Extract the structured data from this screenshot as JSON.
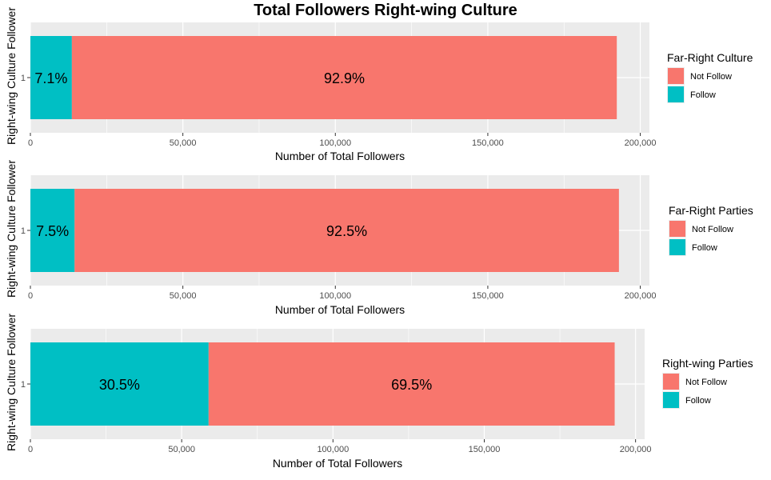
{
  "title": "Total Followers Right-wing Culture",
  "colors": {
    "follow": "#00BFC4",
    "not_follow": "#F8766D",
    "panel_bg": "#EBEBEB",
    "grid": "#FFFFFF"
  },
  "chart_data": [
    {
      "type": "bar",
      "orientation": "horizontal",
      "stacked": true,
      "categories": [
        "1"
      ],
      "series": [
        {
          "name": "Follow",
          "values": [
            13600
          ],
          "label": "7.1%"
        },
        {
          "name": "Not Follow",
          "values": [
            178700
          ],
          "label": "92.9%"
        }
      ],
      "xlabel": "Number of Total Followers",
      "ylabel": "Right-wing Culture Follower",
      "xlim": [
        0,
        203000
      ],
      "x_ticks": [
        0,
        50000,
        100000,
        150000,
        200000
      ],
      "x_tick_labels": [
        "0",
        "50,000",
        "100,000",
        "150,000",
        "200,000"
      ],
      "legend_title": "Far-Right Culture",
      "legend_items": [
        "Not Follow",
        "Follow"
      ],
      "legend_position": "right"
    },
    {
      "type": "bar",
      "orientation": "horizontal",
      "stacked": true,
      "categories": [
        "1"
      ],
      "series": [
        {
          "name": "Follow",
          "values": [
            14500
          ],
          "label": "7.5%"
        },
        {
          "name": "Not Follow",
          "values": [
            178500
          ],
          "label": "92.5%"
        }
      ],
      "xlabel": "Number of Total Followers",
      "ylabel": "Right-wing Culture Follower",
      "xlim": [
        0,
        203000
      ],
      "x_ticks": [
        0,
        50000,
        100000,
        150000,
        200000
      ],
      "x_tick_labels": [
        "0",
        "50,000",
        "100,000",
        "150,000",
        "200,000"
      ],
      "legend_title": "Far-Right Parties",
      "legend_items": [
        "Not Follow",
        "Follow"
      ],
      "legend_position": "right"
    },
    {
      "type": "bar",
      "orientation": "horizontal",
      "stacked": true,
      "categories": [
        "1"
      ],
      "series": [
        {
          "name": "Follow",
          "values": [
            58900
          ],
          "label": "30.5%"
        },
        {
          "name": "Not Follow",
          "values": [
            134200
          ],
          "label": "69.5%"
        }
      ],
      "xlabel": "Number of Total Followers",
      "ylabel": "Right-wing Culture Follower",
      "xlim": [
        0,
        203000
      ],
      "x_ticks": [
        0,
        50000,
        100000,
        150000,
        200000
      ],
      "x_tick_labels": [
        "0",
        "50,000",
        "100,000",
        "150,000",
        "200,000"
      ],
      "legend_title": "Right-wing Parties",
      "legend_items": [
        "Not Follow",
        "Follow"
      ],
      "legend_position": "right"
    }
  ]
}
